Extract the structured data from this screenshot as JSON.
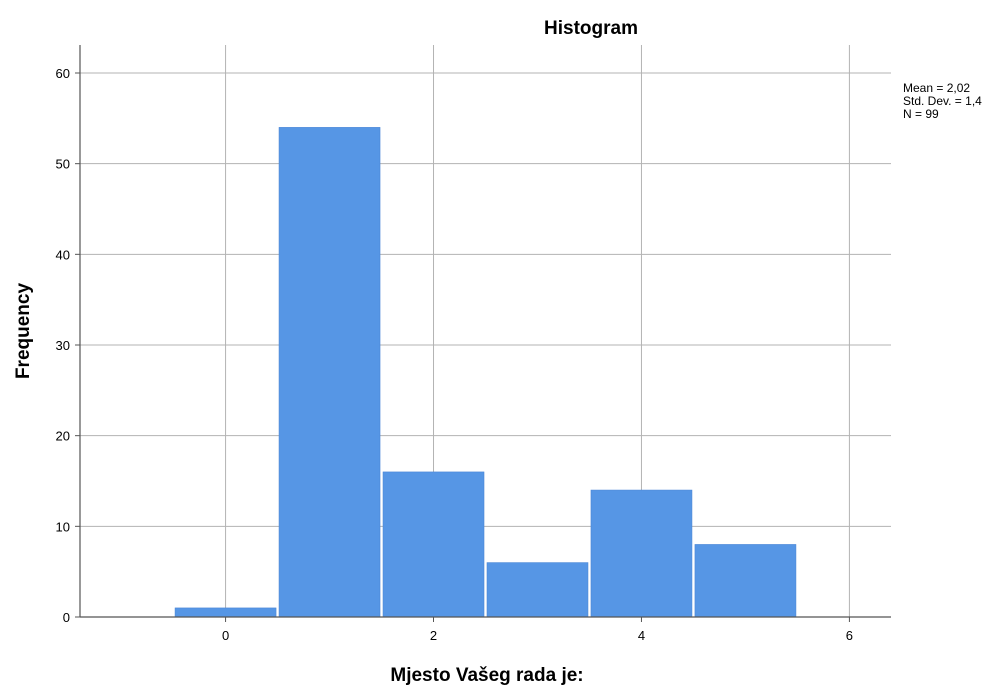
{
  "chart_data": {
    "type": "bar",
    "title": "Histogram",
    "xlabel": "Mjesto Vašeg  rada je:",
    "ylabel": "Frequency",
    "bins": [
      {
        "x_start": -0.5,
        "x_end": 0.5,
        "count": 1
      },
      {
        "x_start": 0.5,
        "x_end": 1.5,
        "count": 54
      },
      {
        "x_start": 1.5,
        "x_end": 2.5,
        "count": 16
      },
      {
        "x_start": 2.5,
        "x_end": 3.5,
        "count": 6
      },
      {
        "x_start": 3.5,
        "x_end": 4.5,
        "count": 14
      },
      {
        "x_start": 4.5,
        "x_end": 5.5,
        "count": 8
      }
    ],
    "xlim": [
      -1.4,
      6.4
    ],
    "ylim": [
      0,
      60
    ],
    "x_ticks": [
      0,
      2,
      4,
      6
    ],
    "y_ticks": [
      0,
      10,
      20,
      30,
      40,
      50,
      60
    ],
    "grid": true,
    "bar_color": "#5696e5",
    "stats": [
      "Mean = 2,02",
      "Std. Dev. = 1,4",
      "N = 99"
    ]
  }
}
